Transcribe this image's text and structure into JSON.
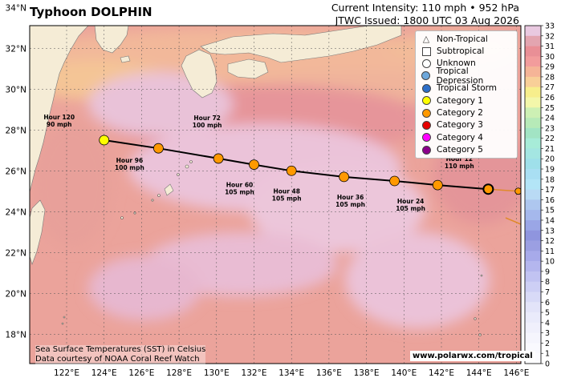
{
  "header": {
    "title": "Typhoon DOLPHIN",
    "intensity": "Current Intensity: 110 mph • 952 hPa",
    "issued": "JTWC Issued: 1800 UTC 03 Aug 2026"
  },
  "legend": [
    {
      "label": "Non-Tropical",
      "symbol": "triangle",
      "color": "#ffffff"
    },
    {
      "label": "Subtropical",
      "symbol": "square",
      "color": "#ffffff"
    },
    {
      "label": "Unknown",
      "symbol": "circle",
      "color": "#ffffff"
    },
    {
      "label": "Tropical Depression",
      "symbol": "circle",
      "color": "#6ea8dc"
    },
    {
      "label": "Tropical Storm",
      "symbol": "circle",
      "color": "#2d6ec8"
    },
    {
      "label": "Category 1",
      "symbol": "circle",
      "color": "#ffff00"
    },
    {
      "label": "Category 2",
      "symbol": "circle",
      "color": "#ff9900"
    },
    {
      "label": "Category 3",
      "symbol": "circle",
      "color": "#e60000"
    },
    {
      "label": "Category 4",
      "symbol": "circle",
      "color": "#ff00ff"
    },
    {
      "label": "Category 5",
      "symbol": "circle",
      "color": "#8b008b"
    }
  ],
  "axes": {
    "lon_labels": [
      "122°E",
      "124°E",
      "126°E",
      "128°E",
      "130°E",
      "132°E",
      "134°E",
      "136°E",
      "138°E",
      "140°E",
      "142°E",
      "144°E",
      "146°E"
    ],
    "lon_values": [
      122,
      124,
      126,
      128,
      130,
      132,
      134,
      136,
      138,
      140,
      142,
      144,
      146
    ],
    "lat_labels": [
      "18°N",
      "20°N",
      "22°N",
      "24°N",
      "26°N",
      "28°N",
      "30°N",
      "32°N",
      "34°N"
    ],
    "lat_values": [
      18,
      20,
      22,
      24,
      26,
      28,
      30,
      32,
      34
    ]
  },
  "colorbar": {
    "ticks": [
      "33",
      "32",
      "31",
      "30",
      "29",
      "28",
      "27",
      "26",
      "25",
      "24",
      "23",
      "22",
      "21",
      "20",
      "19",
      "18",
      "17",
      "16",
      "15",
      "14",
      "13",
      "12",
      "11",
      "10",
      "9",
      "8",
      "7",
      "6",
      "5",
      "4",
      "3",
      "2",
      "1",
      "0"
    ],
    "colors": [
      "#e9c9e0",
      "#e3a5b0",
      "#e98f96",
      "#f29c9c",
      "#f5b497",
      "#f8cf98",
      "#f7ee8c",
      "#f3f7aa",
      "#cdf0b4",
      "#b7eab8",
      "#a2e4c4",
      "#a7ecd8",
      "#a4e6e2",
      "#9fe0ea",
      "#a9dff3",
      "#b3e5f7",
      "#b9daf4",
      "#aec7ef",
      "#a5b8ec",
      "#9aa6e6",
      "#8f95de",
      "#9b9fe2",
      "#a7aaea",
      "#b4b6ee",
      "#c1c3f2",
      "#cdcff5",
      "#d8daf7",
      "#e3e4f9",
      "#eaebfb",
      "#f0f0fc",
      "#f5f5fd",
      "#f9f9fe",
      "#fcfcff"
    ]
  },
  "track": [
    {
      "lon": 147.0,
      "lat": 25.0,
      "color": "#ff9900",
      "label": ""
    },
    {
      "lon": 146.1,
      "lat": 25.0,
      "color": "#ff9900",
      "label": ""
    },
    {
      "lon": 144.5,
      "lat": 25.1,
      "color": "#ff9900",
      "label": "",
      "current": true
    },
    {
      "lon": 141.8,
      "lat": 25.3,
      "color": "#ff9900",
      "label": "Hour 12\n110 mph"
    },
    {
      "lon": 139.5,
      "lat": 25.5,
      "color": "#ff9900",
      "label": "Hour 24\n105 mph"
    },
    {
      "lon": 136.8,
      "lat": 25.7,
      "color": "#ff9900",
      "label": "Hour 36\n105 mph"
    },
    {
      "lon": 134.0,
      "lat": 26.0,
      "color": "#ff9900",
      "label": "Hour 48\n105 mph"
    },
    {
      "lon": 132.0,
      "lat": 26.3,
      "color": "#ff9900",
      "label": "Hour 60\n105 mph"
    },
    {
      "lon": 130.1,
      "lat": 26.6,
      "color": "#ff9900",
      "label": "Hour 72\n100 mph"
    },
    {
      "lon": 126.9,
      "lat": 27.1,
      "color": "#ff9900",
      "label": "Hour 96\n100 mph"
    },
    {
      "lon": 124.0,
      "lat": 27.5,
      "color": "#ffff00",
      "label": "Hour 120\n90 mph"
    }
  ],
  "footer": {
    "credit_line1": "Sea Surface Temperatures (SST) in Celsius",
    "credit_line2": "Data courtesy of NOAA Coral Reef Watch",
    "site": "www.polarwx.com/tropical"
  }
}
